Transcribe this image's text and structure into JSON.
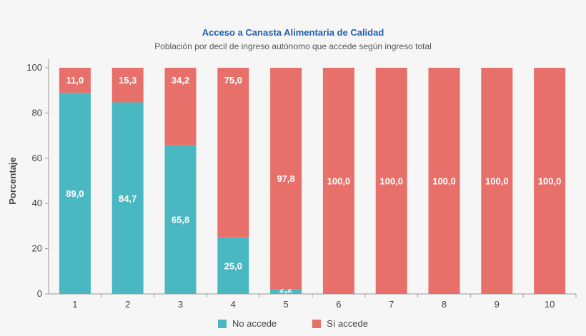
{
  "chart_data": {
    "type": "bar",
    "stacked": true,
    "title": "Acceso a Canasta Alimentaria de Calidad",
    "subtitle": "Población por decil de ingreso autónomo que accede según ingreso total",
    "xlabel": "",
    "ylabel": "Porcentaje",
    "ylim": [
      0,
      100
    ],
    "yticks": [
      0,
      20,
      40,
      60,
      80,
      100
    ],
    "categories": [
      "1",
      "2",
      "3",
      "4",
      "5",
      "6",
      "7",
      "8",
      "9",
      "10"
    ],
    "series": [
      {
        "name": "No accede",
        "color": "#4ab8c3",
        "values": [
          89.0,
          84.7,
          65.8,
          25.0,
          2.2,
          0,
          0,
          0,
          0,
          0
        ],
        "labels": [
          "89,0",
          "84,7",
          "65,8",
          "25,0",
          "2,2",
          "",
          "",
          "",
          "",
          ""
        ]
      },
      {
        "name": "Sí accede",
        "color": "#e8706a",
        "values": [
          11.0,
          15.3,
          34.2,
          75.0,
          97.8,
          100,
          100,
          100,
          100,
          100
        ],
        "labels": [
          "11,0",
          "15,3",
          "34,2",
          "75,0",
          "97,8",
          "100,0",
          "100,0",
          "100,0",
          "100,0",
          "100,0"
        ]
      }
    ],
    "legend_position": "bottom",
    "grid": false
  }
}
